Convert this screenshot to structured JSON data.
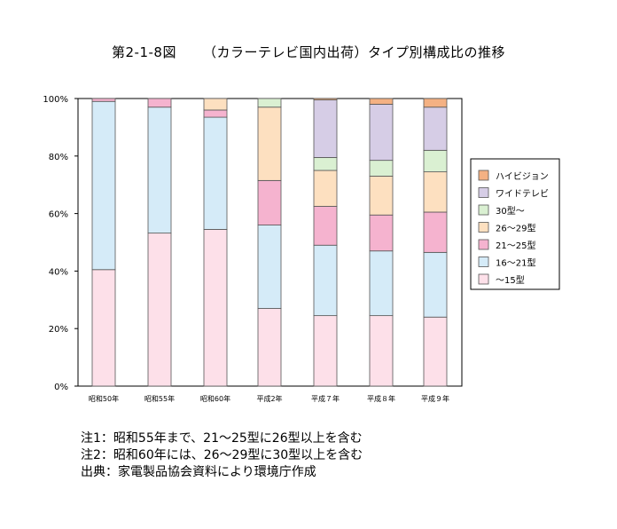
{
  "title": {
    "figure": "第2-1-8図",
    "text": "（カラーテレビ国内出荷）タイプ別構成比の推移"
  },
  "colors": {
    "hivision": "#f4b183",
    "wide": "#d6cde6",
    "s30": "#daf0d2",
    "s26_29": "#fde0c0",
    "s21_25": "#f5b3cf",
    "s16_21": "#d5ebf8",
    "s15": "#fde0e9",
    "stroke": "#555555",
    "axis": "#000000"
  },
  "chart_data": {
    "type": "bar",
    "stacked": true,
    "percent": true,
    "categories": [
      "昭和50年",
      "昭和55年",
      "昭和60年",
      "平成2年",
      "平成７年",
      "平成８年",
      "平成９年"
    ],
    "yticks": [
      "0%",
      "20%",
      "40%",
      "60%",
      "80%",
      "100%"
    ],
    "ylim": [
      0,
      100
    ],
    "legend_position": "right",
    "series": [
      {
        "name": "～15型",
        "color_key": "s15",
        "values": [
          40.5,
          53.2,
          54.5,
          27.0,
          24.5,
          24.5,
          24.0
        ]
      },
      {
        "name": "16～21型",
        "color_key": "s16_21",
        "values": [
          58.5,
          43.8,
          39.0,
          29.0,
          24.5,
          22.5,
          22.5
        ]
      },
      {
        "name": "21～25型",
        "color_key": "s21_25",
        "values": [
          1.0,
          3.0,
          2.5,
          15.5,
          13.5,
          12.5,
          14.0
        ]
      },
      {
        "name": "26～29型",
        "color_key": "s26_29",
        "values": [
          0,
          0,
          4.0,
          25.5,
          12.5,
          13.5,
          14.0
        ]
      },
      {
        "name": "30型～",
        "color_key": "s30",
        "values": [
          0,
          0,
          0,
          3.0,
          4.5,
          5.5,
          7.5
        ]
      },
      {
        "name": "ワイドテレビ",
        "color_key": "wide",
        "values": [
          0,
          0,
          0,
          0,
          20.0,
          19.5,
          15.0
        ]
      },
      {
        "name": "ハイビジョン",
        "color_key": "hivision",
        "values": [
          0,
          0,
          0,
          0,
          0.5,
          2.0,
          3.0
        ]
      }
    ],
    "legend_order": [
      "ハイビジョン",
      "ワイドテレビ",
      "30型～",
      "26～29型",
      "21～25型",
      "16～21型",
      "～15型"
    ]
  },
  "notes": [
    "注1：昭和55年まで、21～25型に26型以上を含む",
    "注2：昭和60年には、26～29型に30型以上を含む",
    "出典：家電製品協会資料により環境庁作成"
  ]
}
